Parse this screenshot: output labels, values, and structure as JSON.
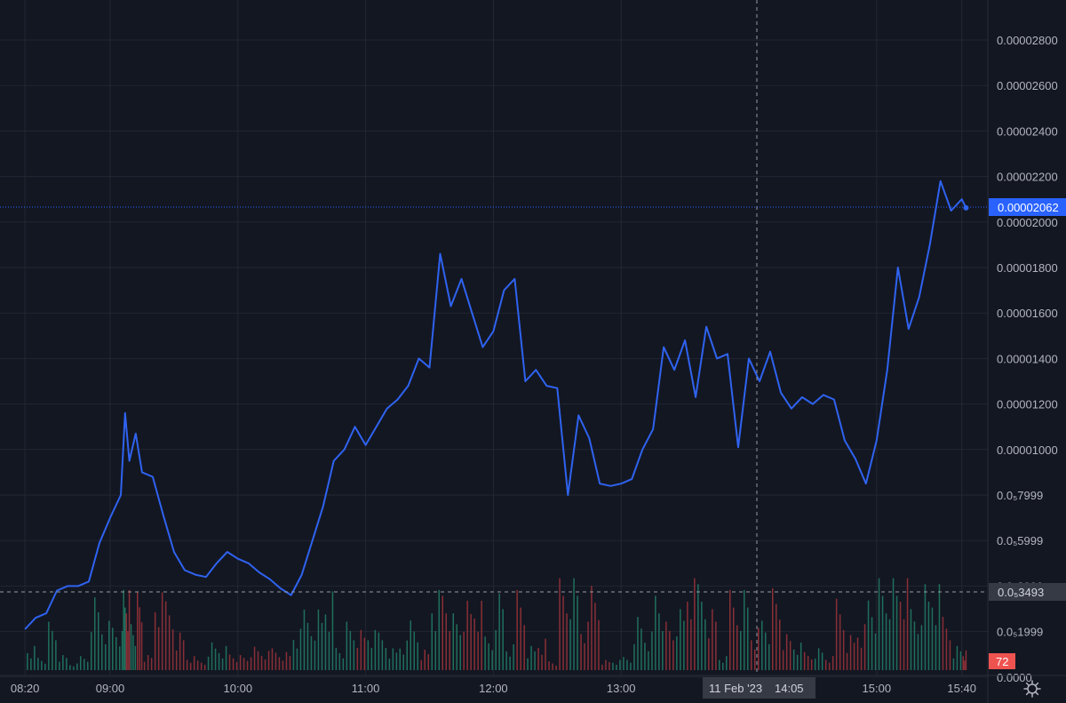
{
  "colors": {
    "background": "#131722",
    "grid": "#232733",
    "line": "#2f63f0",
    "volume_up": "#1f6f5c",
    "volume_down": "#8a2f36",
    "price_badge": "#2962ff",
    "volume_badge": "#ef5350",
    "crosshair_badge": "#363a45",
    "axis_text": "#b2b5be"
  },
  "icons": {
    "settings": "gear-icon"
  },
  "crosshair": {
    "date_label": "11 Feb '23",
    "time_label": "14:05",
    "price_label": "0.0₅3493"
  },
  "last_price_label": "0.00002062",
  "volume_label": "72",
  "chart_data": {
    "type": "line",
    "title": "",
    "x_unit": "time (11 Feb '23)",
    "x_ticks": [
      "08:20",
      "09:00",
      "10:00",
      "11:00",
      "12:00",
      "13:00",
      "15:00",
      "15:40"
    ],
    "y_tick_labels": [
      "0.00002800",
      "0.00002600",
      "0.00002400",
      "0.00002200",
      "0.00002000",
      "0.00001800",
      "0.00001600",
      "0.00001400",
      "0.00001200",
      "0.00001000",
      "0.0₅7999",
      "0.0₅5999",
      "0.0₅3999",
      "0.0₅1999",
      "0.0000"
    ],
    "ylim": [
      0,
      2.8e-05
    ],
    "grid": true,
    "last_price": 2.062e-05,
    "series": [
      {
        "x": [
          "08:20",
          "08:25",
          "08:30",
          "08:35",
          "08:40",
          "08:45",
          "08:50",
          "08:55",
          "09:00",
          "09:05",
          "09:07",
          "09:09",
          "09:12",
          "09:15",
          "09:20",
          "09:25",
          "09:30",
          "09:35",
          "09:40",
          "09:45",
          "09:50",
          "09:55",
          "10:00",
          "10:05",
          "10:10",
          "10:15",
          "10:20",
          "10:25",
          "10:30",
          "10:35",
          "10:40",
          "10:45",
          "10:50",
          "10:55",
          "11:00",
          "11:05",
          "11:10",
          "11:15",
          "11:20",
          "11:25",
          "11:30",
          "11:35",
          "11:40",
          "11:45",
          "11:50",
          "11:55",
          "12:00",
          "12:05",
          "12:10",
          "12:15",
          "12:20",
          "12:25",
          "12:30",
          "12:35",
          "12:40",
          "12:45",
          "12:50",
          "12:55",
          "13:00",
          "13:05",
          "13:10",
          "13:15",
          "13:20",
          "13:25",
          "13:30",
          "13:35",
          "13:40",
          "13:45",
          "13:50",
          "13:55",
          "14:00",
          "14:05",
          "14:10",
          "14:15",
          "14:20",
          "14:25",
          "14:30",
          "14:35",
          "14:40",
          "14:45",
          "14:50",
          "14:55",
          "15:00",
          "15:05",
          "15:10",
          "15:15",
          "15:20",
          "15:25",
          "15:30",
          "15:35",
          "15:40",
          "15:42"
        ],
        "values": [
          2.1e-06,
          2.6e-06,
          2.8e-06,
          3.8e-06,
          4e-06,
          4e-06,
          4.2e-06,
          5.9e-06,
          7e-06,
          8e-06,
          1.16e-05,
          9.5e-06,
          1.07e-05,
          9e-06,
          8.8e-06,
          7.1e-06,
          5.5e-06,
          4.7e-06,
          4.5e-06,
          4.4e-06,
          5e-06,
          5.5e-06,
          5.2e-06,
          5e-06,
          4.6e-06,
          4.3e-06,
          3.9e-06,
          3.6e-06,
          4.5e-06,
          6e-06,
          7.5e-06,
          9.5e-06,
          1e-05,
          1.1e-05,
          1.02e-05,
          1.1e-05,
          1.18e-05,
          1.22e-05,
          1.28e-05,
          1.4e-05,
          1.36e-05,
          1.86e-05,
          1.63e-05,
          1.75e-05,
          1.6e-05,
          1.45e-05,
          1.52e-05,
          1.7e-05,
          1.75e-05,
          1.3e-05,
          1.35e-05,
          1.28e-05,
          1.27e-05,
          8e-06,
          1.15e-05,
          1.05e-05,
          8.5e-06,
          8.4e-06,
          8.5e-06,
          8.7e-06,
          1e-05,
          1.09e-05,
          1.45e-05,
          1.35e-05,
          1.48e-05,
          1.23e-05,
          1.54e-05,
          1.4e-05,
          1.42e-05,
          1.01e-05,
          1.4e-05,
          1.3e-05,
          1.43e-05,
          1.25e-05,
          1.18e-05,
          1.23e-05,
          1.2e-05,
          1.24e-05,
          1.22e-05,
          1.04e-05,
          9.6e-06,
          8.5e-06,
          1.04e-05,
          1.35e-05,
          1.8e-05,
          1.53e-05,
          1.67e-05,
          1.9e-05,
          2.18e-05,
          2.05e-05,
          2.1e-05,
          2.062e-05
        ]
      }
    ],
    "volume": {
      "series": "volume",
      "up_color": "#1f6f5c",
      "down_color": "#8a2f36"
    }
  }
}
